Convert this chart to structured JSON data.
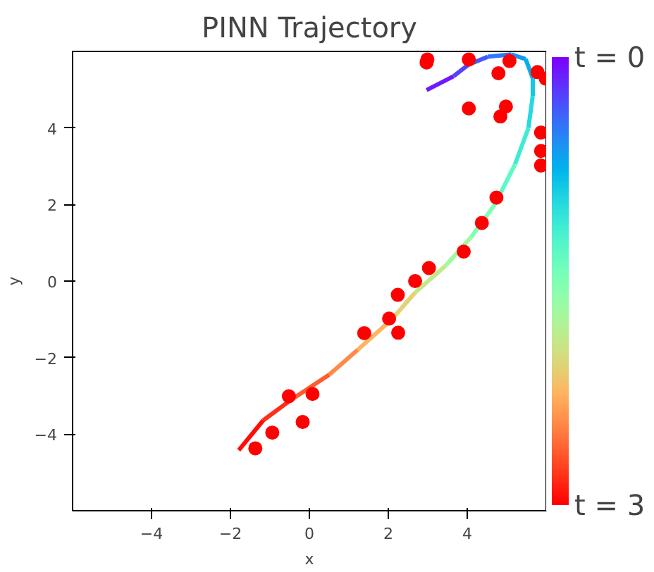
{
  "chart_data": {
    "type": "scatter",
    "title": "PINN Trajectory",
    "xlabel": "x",
    "ylabel": "y",
    "xlim": [
      -6,
      6
    ],
    "ylim": [
      -6,
      6
    ],
    "xticks": [
      -4,
      -2,
      0,
      2,
      4
    ],
    "yticks": [
      -4,
      -2,
      0,
      2,
      4
    ],
    "grid": false,
    "clim": [
      3,
      0
    ],
    "cticks": [
      {
        "value": 0,
        "label": "t = 0"
      },
      {
        "value": 3,
        "label": "t = 3"
      }
    ],
    "series": [
      {
        "type": "line",
        "color": "#6e1afe",
        "x": [
          2.97,
          3.65
        ],
        "values": [
          4.99,
          5.35
        ]
      },
      {
        "type": "line",
        "color": "#5542fc",
        "x": [
          3.65,
          4.04
        ],
        "values": [
          5.35,
          5.66
        ]
      },
      {
        "type": "line",
        "color": "#445bfa",
        "x": [
          4.04,
          4.52
        ],
        "values": [
          5.66,
          5.86
        ]
      },
      {
        "type": "line",
        "color": "#2e79f7",
        "x": [
          4.52,
          5.12
        ],
        "values": [
          5.86,
          5.92
        ]
      },
      {
        "type": "line",
        "color": "#1995f2",
        "x": [
          5.12,
          5.48
        ],
        "values": [
          5.92,
          5.8
        ]
      },
      {
        "type": "line",
        "color": "#04afec",
        "x": [
          5.48,
          5.66
        ],
        "values": [
          5.8,
          5.3
        ]
      },
      {
        "type": "line",
        "color": "#11c6e6",
        "x": [
          5.66,
          5.66
        ],
        "values": [
          5.3,
          4.84
        ]
      },
      {
        "type": "line",
        "color": "#26d9de",
        "x": [
          5.66,
          5.55
        ],
        "values": [
          4.84,
          4.0
        ]
      },
      {
        "type": "line",
        "color": "#3febd4",
        "x": [
          5.55,
          5.21
        ],
        "values": [
          4.0,
          3.05
        ]
      },
      {
        "type": "line",
        "color": "#5df9c6",
        "x": [
          5.21,
          4.7
        ],
        "values": [
          3.05,
          2.0
        ]
      },
      {
        "type": "line",
        "color": "#7fffb4",
        "x": [
          4.7,
          4.1
        ],
        "values": [
          2.0,
          1.15
        ]
      },
      {
        "type": "line",
        "color": "#a1f9a0",
        "x": [
          4.1,
          3.45
        ],
        "values": [
          1.15,
          0.4
        ]
      },
      {
        "type": "line",
        "color": "#c3e88a",
        "x": [
          3.45,
          2.68
        ],
        "values": [
          0.4,
          -0.3
        ]
      },
      {
        "type": "line",
        "color": "#e1d276",
        "x": [
          2.68,
          2.09
        ],
        "values": [
          -0.3,
          -1.0
        ]
      },
      {
        "type": "line",
        "color": "#ffb461",
        "x": [
          2.09,
          1.22
        ],
        "values": [
          -1.0,
          -1.8
        ]
      },
      {
        "type": "line",
        "color": "#ff8a48",
        "x": [
          1.22,
          0.5
        ],
        "values": [
          -1.8,
          -2.45
        ]
      },
      {
        "type": "line",
        "color": "#ff5b2e",
        "x": [
          0.5,
          -0.46
        ],
        "values": [
          -2.45,
          -3.1
        ]
      },
      {
        "type": "line",
        "color": "#ff2e17",
        "x": [
          -0.46,
          -1.17
        ],
        "values": [
          -3.1,
          -3.64
        ]
      },
      {
        "type": "line",
        "color": "#ff0d06",
        "x": [
          -1.17,
          -1.79
        ],
        "values": [
          -3.64,
          -4.42
        ]
      },
      {
        "marker": "circle",
        "color": "#ff0000",
        "x": [
          2.99,
          2.97,
          4.04,
          4.79,
          5.07,
          5.78,
          5.99,
          4.04,
          4.98,
          4.84,
          5.87,
          5.87,
          5.87,
          4.74,
          4.37,
          3.91,
          3.03,
          2.68,
          2.24,
          2.02,
          1.39,
          2.25,
          0.08,
          -0.52,
          -0.17,
          -0.94,
          -1.37
        ],
        "values": [
          5.79,
          5.71,
          5.79,
          5.43,
          5.75,
          5.46,
          5.29,
          4.51,
          4.56,
          4.3,
          3.88,
          3.4,
          3.02,
          2.18,
          1.52,
          0.77,
          0.34,
          0.0,
          -0.36,
          -0.98,
          -1.36,
          -1.35,
          -2.95,
          -3.01,
          -3.68,
          -3.96,
          -4.37
        ]
      }
    ]
  }
}
